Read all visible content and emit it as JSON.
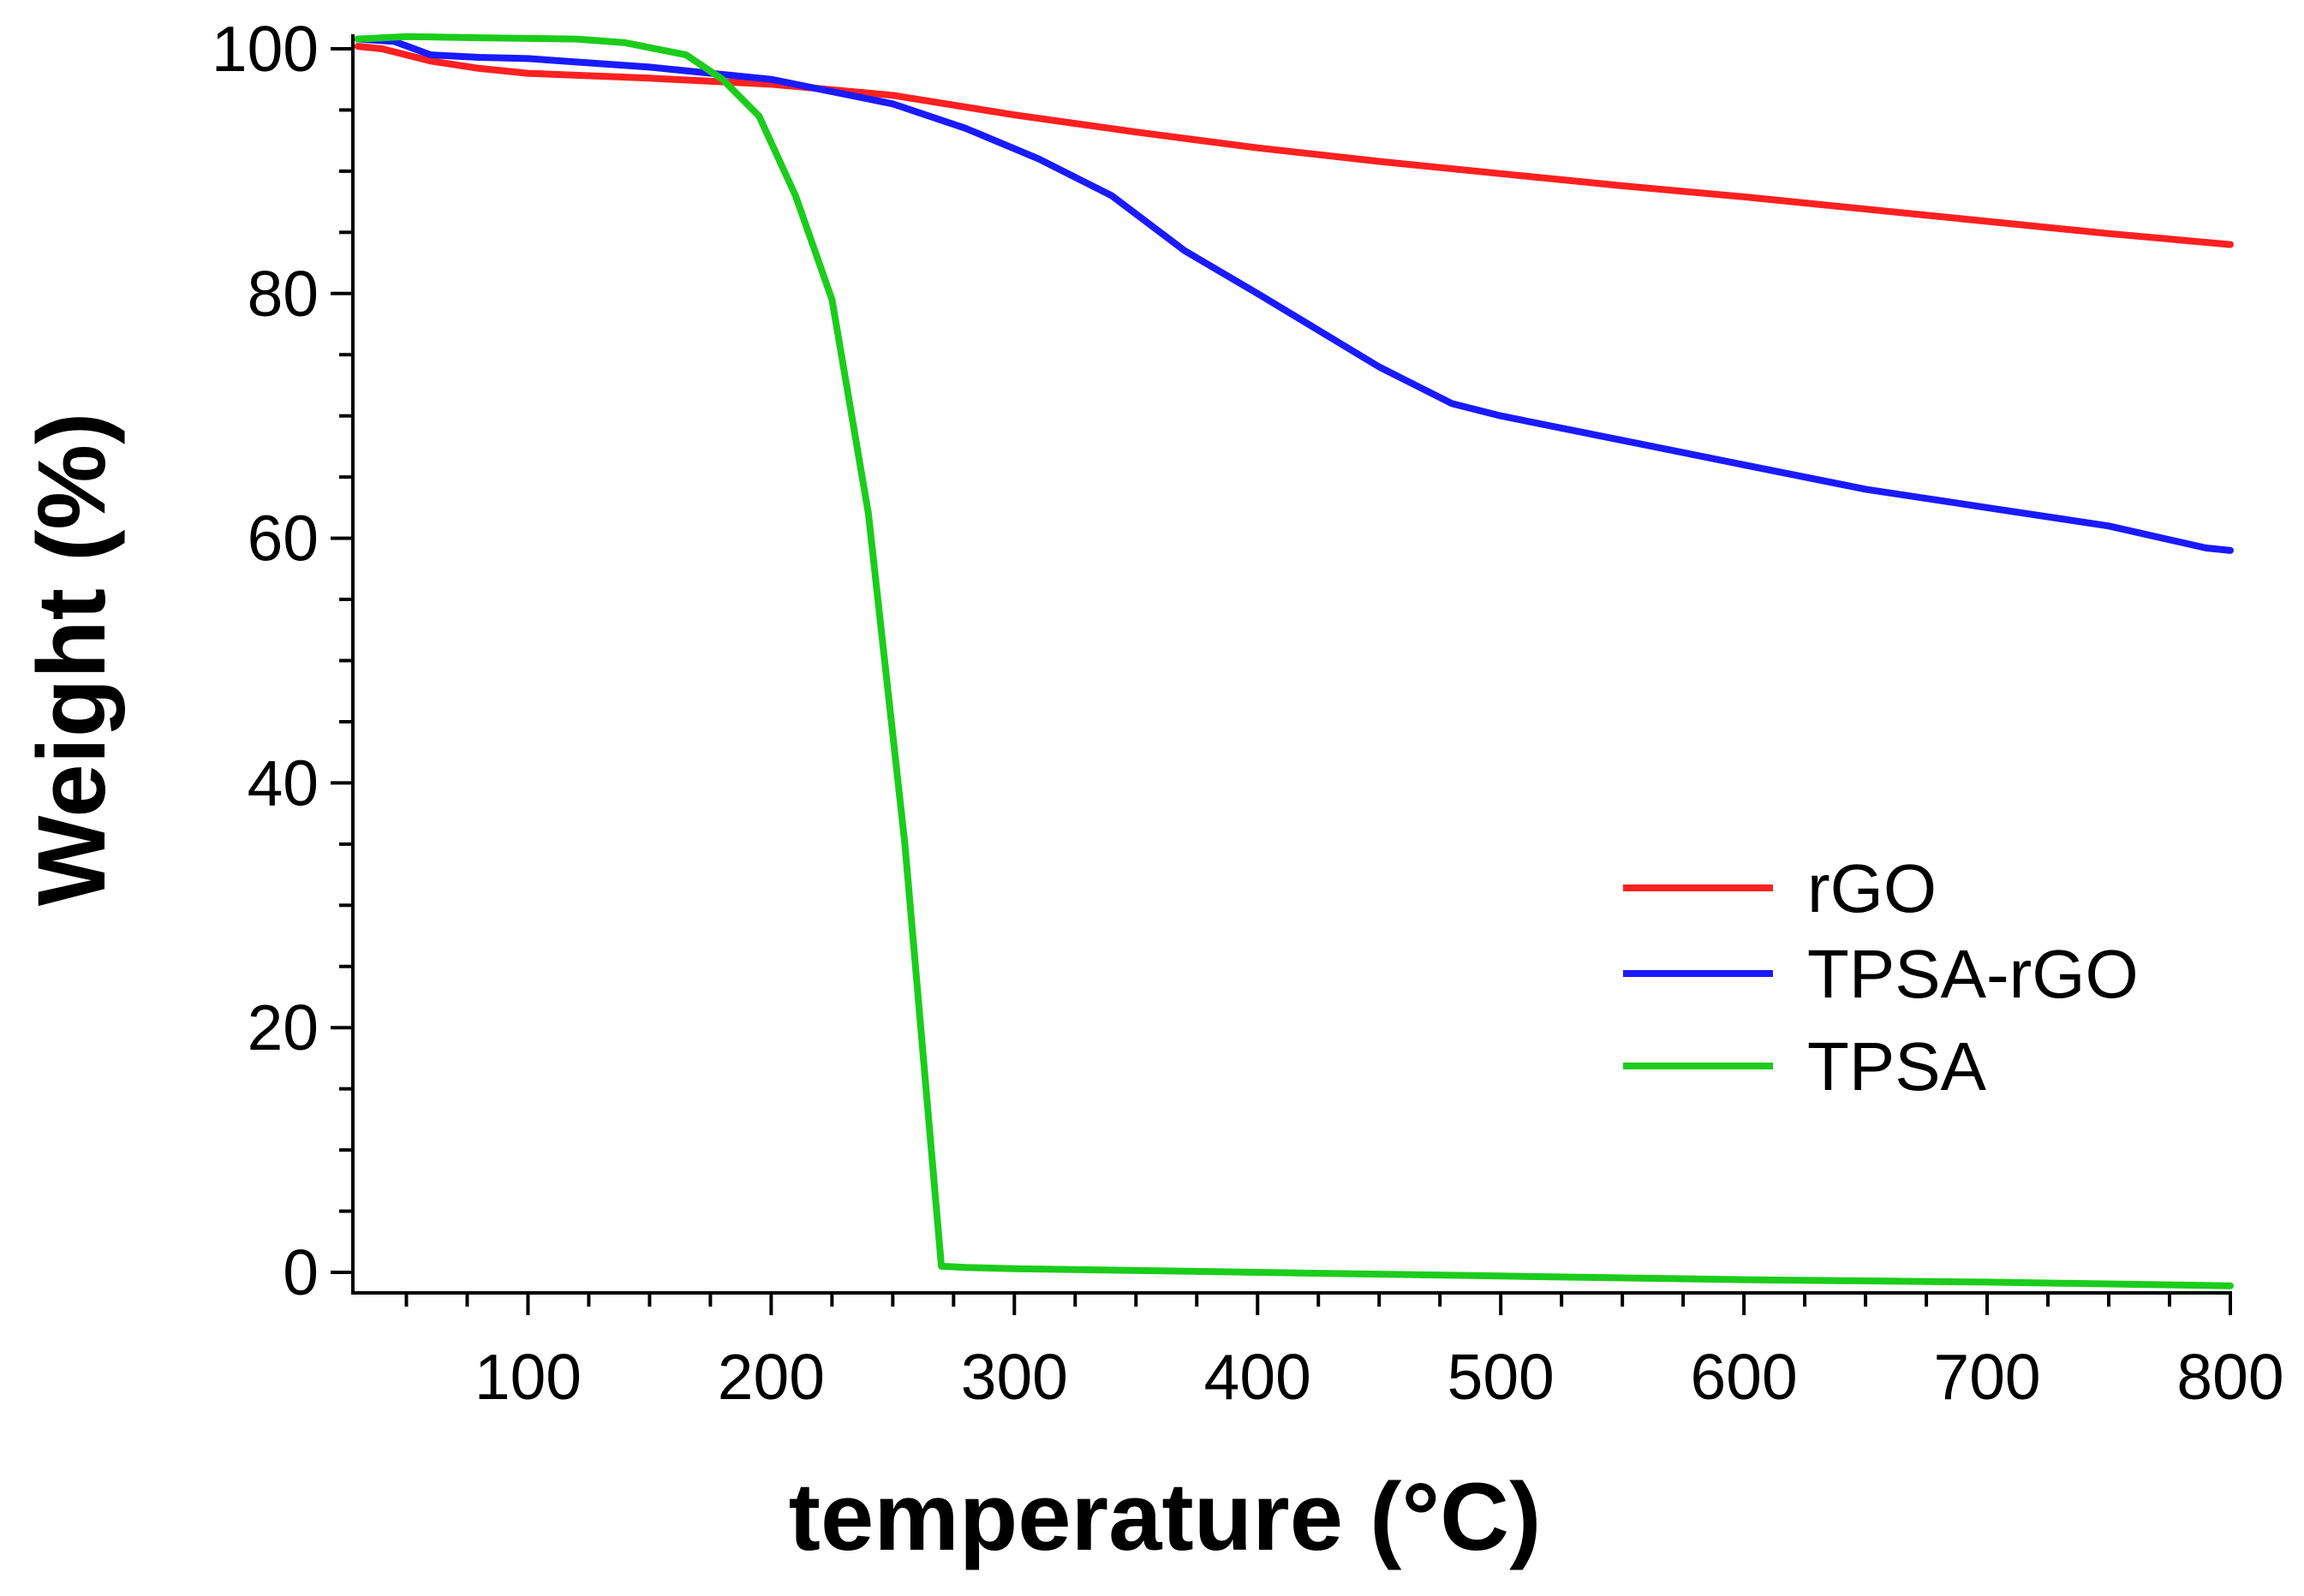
{
  "chart_data": {
    "type": "line",
    "title": "",
    "xlabel": "temperature (°C)",
    "ylabel": "Weight (%)",
    "xlim": [
      28,
      800
    ],
    "ylim": [
      -2,
      101
    ],
    "x_ticks": [
      100,
      200,
      300,
      400,
      500,
      600,
      700,
      800
    ],
    "x_tick_labels": [
      "100",
      "200",
      "300",
      "400",
      "500",
      "600",
      "700",
      "800"
    ],
    "y_ticks": [
      0,
      20,
      40,
      60,
      80,
      100
    ],
    "y_tick_labels": [
      "0",
      "20",
      "40",
      "60",
      "80",
      "100"
    ],
    "grid": false,
    "legend_position": "center-right",
    "series": [
      {
        "name": "rGO",
        "color": "#ff2020",
        "x": [
          30,
          40,
          60,
          80,
          100,
          150,
          200,
          250,
          300,
          350,
          400,
          450,
          500,
          550,
          600,
          650,
          700,
          750,
          800
        ],
        "y": [
          100.2,
          100.0,
          99.0,
          98.4,
          98.0,
          97.6,
          97.1,
          96.2,
          94.6,
          93.2,
          91.9,
          90.8,
          89.8,
          88.8,
          87.9,
          86.9,
          85.9,
          84.9,
          84.0
        ]
      },
      {
        "name": "TPSA-rGO",
        "color": "#1a1aff",
        "x": [
          30,
          45,
          60,
          80,
          100,
          150,
          200,
          250,
          280,
          310,
          340,
          370,
          400,
          450,
          480,
          500,
          550,
          600,
          650,
          700,
          750,
          790,
          800
        ],
        "y": [
          100.8,
          100.6,
          99.5,
          99.3,
          99.2,
          98.5,
          97.5,
          95.5,
          93.5,
          91.0,
          88.0,
          83.5,
          80.0,
          74.0,
          71.0,
          70.0,
          68.0,
          66.0,
          64.0,
          62.5,
          61.0,
          59.2,
          59.0
        ]
      },
      {
        "name": "TPSA",
        "color": "#1ccc1c",
        "x": [
          30,
          50,
          80,
          120,
          140,
          165,
          180,
          195,
          210,
          225,
          240,
          255,
          265,
          270,
          280,
          300,
          400,
          500,
          600,
          700,
          800
        ],
        "y": [
          100.8,
          101.0,
          100.9,
          100.8,
          100.5,
          99.5,
          97.5,
          94.5,
          88.0,
          79.5,
          62.0,
          35.0,
          12.0,
          0.5,
          0.4,
          0.3,
          0.0,
          -0.3,
          -0.6,
          -0.8,
          -1.1
        ]
      }
    ]
  }
}
